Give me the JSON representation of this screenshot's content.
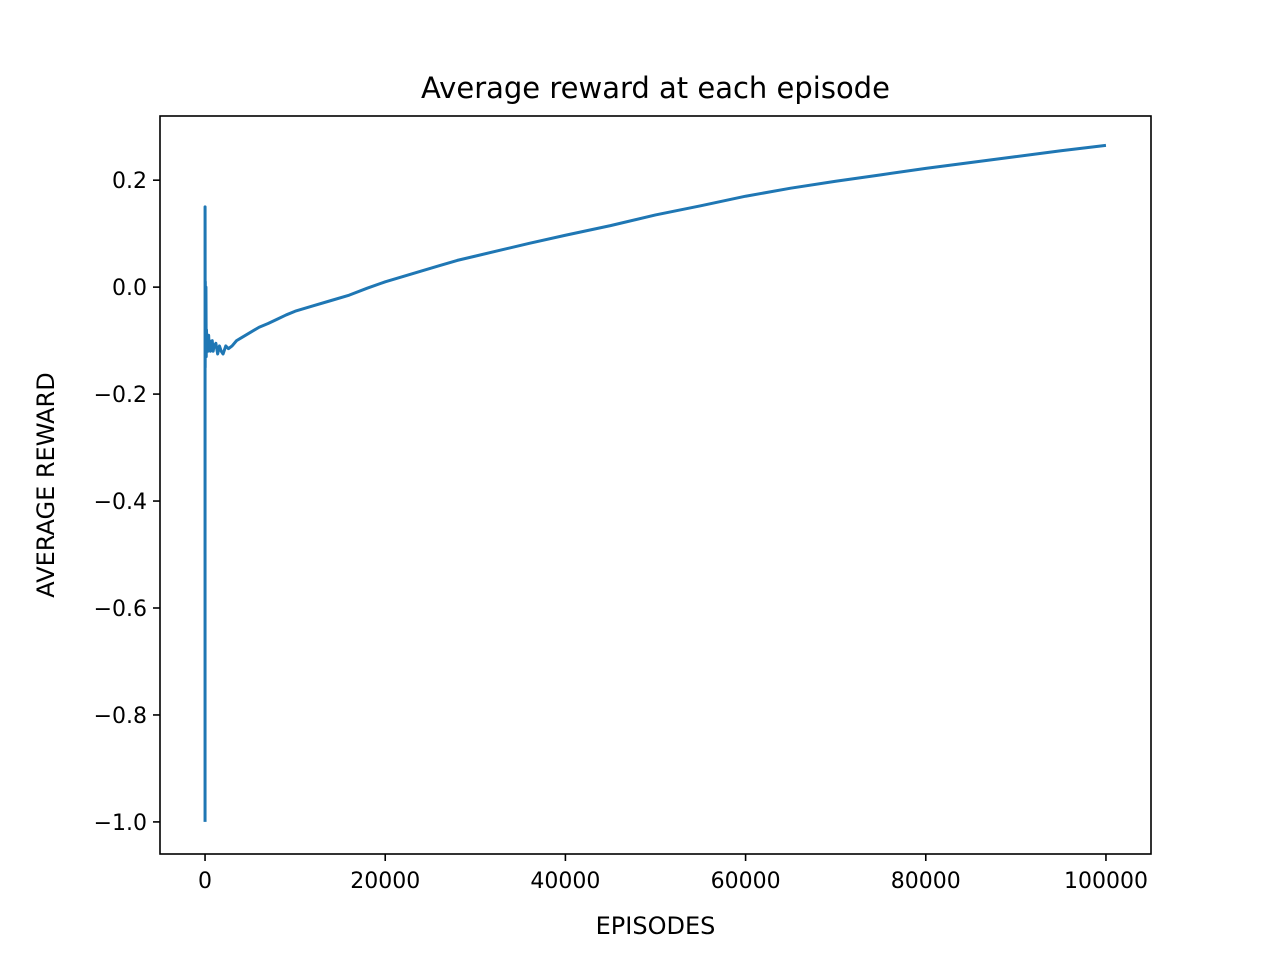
{
  "chart_data": {
    "type": "line",
    "title": "Average reward at each episode",
    "xlabel": "EPISODES",
    "ylabel": "AVERAGE REWARD",
    "xlim": [
      -5000,
      105000
    ],
    "ylim": [
      -1.06,
      0.32
    ],
    "xticks": [
      {
        "value": 0,
        "label": "0"
      },
      {
        "value": 20000,
        "label": "20000"
      },
      {
        "value": 40000,
        "label": "40000"
      },
      {
        "value": 60000,
        "label": "60000"
      },
      {
        "value": 80000,
        "label": "80000"
      },
      {
        "value": 100000,
        "label": "100000"
      }
    ],
    "yticks": [
      {
        "value": 0.2,
        "label": "0.2"
      },
      {
        "value": 0.0,
        "label": "0.0"
      },
      {
        "value": -0.2,
        "label": "−0.2"
      },
      {
        "value": -0.4,
        "label": "−0.4"
      },
      {
        "value": -0.6,
        "label": "−0.6"
      },
      {
        "value": -0.8,
        "label": "−0.8"
      },
      {
        "value": -1.0,
        "label": "−1.0"
      }
    ],
    "grid": false,
    "line_color": "#1f77b4",
    "series": [
      {
        "x": [
          0,
          1,
          3,
          6,
          10,
          15,
          20,
          30,
          40,
          60,
          80,
          100,
          130,
          160,
          200,
          250,
          300,
          350,
          400,
          450,
          500,
          600,
          700,
          800,
          900,
          1000,
          1200,
          1400,
          1600,
          1800,
          2000,
          2300,
          2600,
          3000,
          3500,
          4000,
          5000,
          6000,
          7000,
          8000,
          9000,
          10000,
          12000,
          14000,
          16000,
          18000,
          20000,
          22000,
          24000,
          26000,
          28000,
          30000,
          33000,
          36000,
          40000,
          45000,
          50000,
          55000,
          60000,
          65000,
          70000,
          75000,
          80000,
          85000,
          90000,
          95000,
          100000
        ],
        "y": [
          -1.0,
          -0.5,
          0.15,
          0.1,
          0.0,
          -0.15,
          -0.05,
          0.01,
          -0.12,
          -0.05,
          -0.1,
          0.0,
          -0.13,
          -0.08,
          -0.11,
          -0.09,
          -0.12,
          -0.1,
          -0.09,
          -0.11,
          -0.1,
          -0.12,
          -0.11,
          -0.1,
          -0.12,
          -0.11,
          -0.105,
          -0.125,
          -0.11,
          -0.12,
          -0.125,
          -0.11,
          -0.115,
          -0.11,
          -0.1,
          -0.095,
          -0.085,
          -0.075,
          -0.068,
          -0.06,
          -0.052,
          -0.045,
          -0.035,
          -0.025,
          -0.015,
          -0.002,
          0.01,
          0.02,
          0.03,
          0.04,
          0.05,
          0.058,
          0.07,
          0.082,
          0.097,
          0.115,
          0.135,
          0.152,
          0.17,
          0.185,
          0.198,
          0.21,
          0.222,
          0.233,
          0.244,
          0.255,
          0.265
        ]
      }
    ]
  }
}
